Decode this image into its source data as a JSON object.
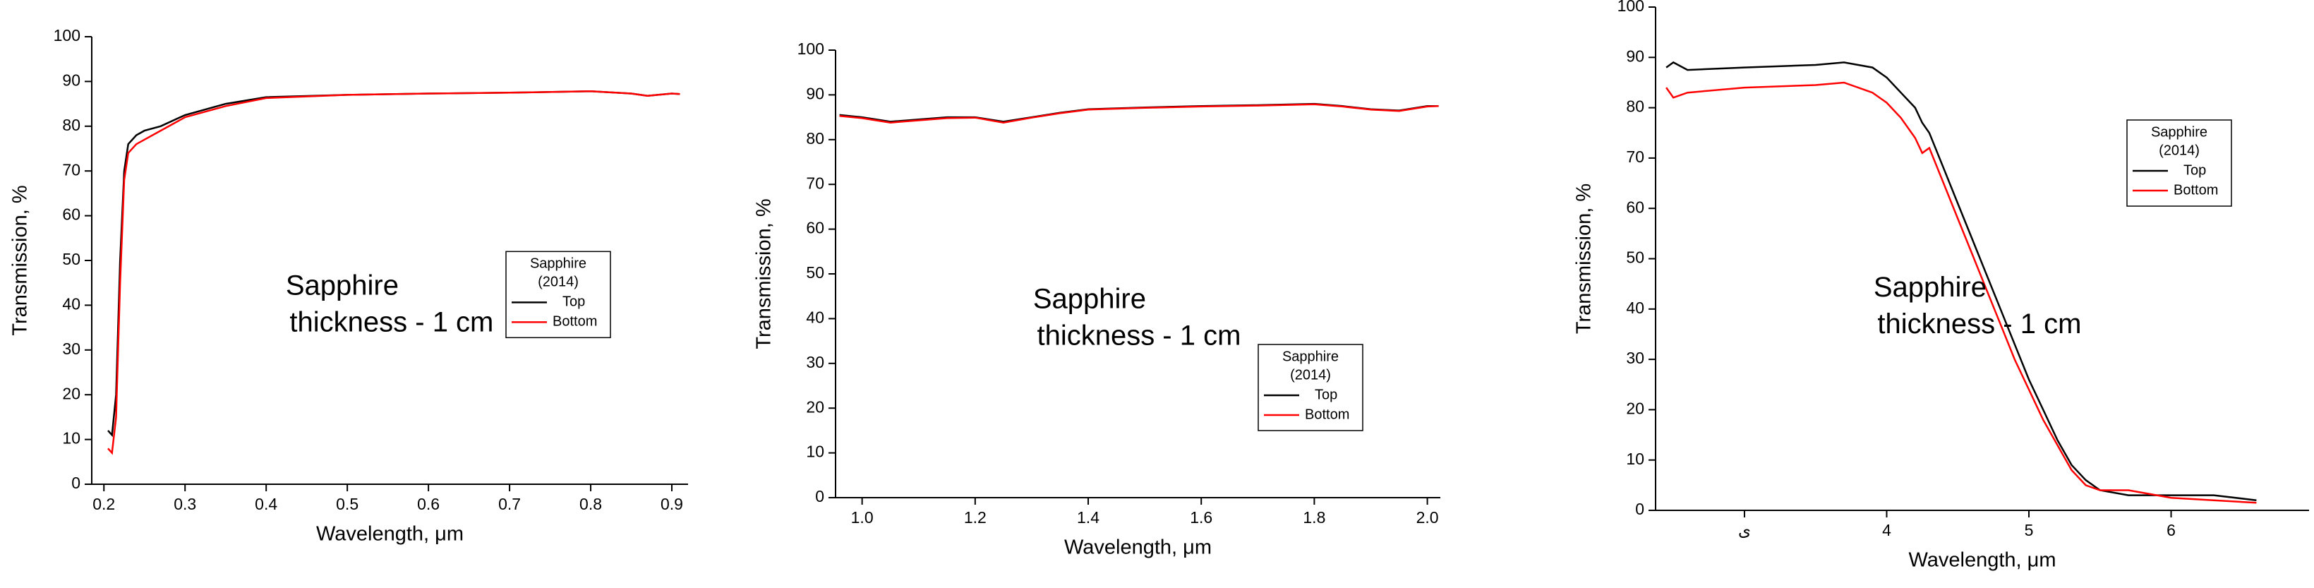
{
  "chart_data": [
    {
      "type": "line",
      "x_label": "Wavelength, μm",
      "y_label": "Transmission, %",
      "annotation": [
        "Sapphire",
        "thickness - 1 cm"
      ],
      "legend_title": [
        "Sapphire",
        "(2014)"
      ],
      "legend": "center right",
      "xlim": [
        0.185,
        0.92
      ],
      "ylim": [
        0,
        100
      ],
      "xticks": [
        0.2,
        0.3,
        0.4,
        0.5,
        0.6,
        0.7,
        0.8,
        0.9
      ],
      "yticks": [
        0,
        10,
        20,
        30,
        40,
        50,
        60,
        70,
        80,
        90,
        100
      ],
      "series": [
        {
          "name": "Top",
          "color": "#000000",
          "x": [
            0.205,
            0.21,
            0.215,
            0.22,
            0.225,
            0.23,
            0.24,
            0.25,
            0.27,
            0.3,
            0.35,
            0.4,
            0.5,
            0.6,
            0.7,
            0.8,
            0.85,
            0.87,
            0.9,
            0.91
          ],
          "values": [
            12,
            11,
            20,
            50,
            70,
            76,
            78,
            79,
            80,
            82.5,
            85,
            86.5,
            87,
            87.3,
            87.5,
            87.8,
            87.3,
            86.8,
            87.3,
            87.2
          ]
        },
        {
          "name": "Bottom",
          "color": "#ff0000",
          "x": [
            0.205,
            0.21,
            0.215,
            0.22,
            0.225,
            0.23,
            0.24,
            0.25,
            0.27,
            0.3,
            0.35,
            0.4,
            0.5,
            0.6,
            0.7,
            0.8,
            0.85,
            0.87,
            0.9,
            0.91
          ],
          "values": [
            8,
            7,
            15,
            45,
            68,
            74,
            76,
            77,
            79,
            82,
            84.5,
            86.3,
            87,
            87.3,
            87.5,
            87.8,
            87.3,
            86.8,
            87.3,
            87.2
          ]
        }
      ]
    },
    {
      "type": "line",
      "x_label": "Wavelength, μm",
      "y_label": "Transmission, %",
      "annotation": [
        "Sapphire",
        "thickness - 1 cm"
      ],
      "legend_title": [
        "Sapphire",
        "(2014)"
      ],
      "legend": "lower right",
      "xlim": [
        0.953,
        2.023
      ],
      "ylim": [
        0,
        100
      ],
      "xticks": [
        {
          "value": 1,
          "label": "1.0"
        },
        1.2,
        1.4,
        1.6,
        1.8,
        {
          "value": 2,
          "label": "2.0"
        }
      ],
      "yticks": [
        0,
        10,
        20,
        30,
        40,
        50,
        60,
        70,
        80,
        90,
        100
      ],
      "series": [
        {
          "name": "Top",
          "color": "#000000",
          "x": [
            0.96,
            1.0,
            1.05,
            1.1,
            1.15,
            1.2,
            1.25,
            1.3,
            1.35,
            1.4,
            1.5,
            1.6,
            1.7,
            1.8,
            1.85,
            1.9,
            1.95,
            2.0,
            2.02
          ],
          "values": [
            85.5,
            85,
            84,
            84.5,
            85,
            85,
            84,
            85,
            86,
            86.8,
            87.2,
            87.5,
            87.7,
            88,
            87.5,
            86.8,
            86.5,
            87.5,
            87.5
          ]
        },
        {
          "name": "Bottom",
          "color": "#ff0000",
          "x": [
            0.96,
            1.0,
            1.05,
            1.1,
            1.15,
            1.2,
            1.25,
            1.3,
            1.35,
            1.4,
            1.5,
            1.6,
            1.7,
            1.8,
            1.85,
            1.9,
            1.95,
            2.0,
            2.02
          ],
          "values": [
            85.3,
            84.8,
            83.8,
            84.3,
            84.8,
            84.9,
            83.8,
            84.9,
            85.9,
            86.7,
            87.1,
            87.4,
            87.6,
            87.9,
            87.4,
            86.7,
            86.4,
            87.4,
            87.5
          ]
        }
      ]
    },
    {
      "type": "line",
      "x_label": "Wavelength, μm",
      "y_label": "Transmission, %",
      "annotation": [
        "Sapphire",
        "thickness - 1 cm"
      ],
      "legend_title": [
        "Sapphire",
        "(2014)"
      ],
      "legend": "upper right",
      "xlim": [
        2.375,
        6.97
      ],
      "ylim": [
        0,
        100
      ],
      "xticks": [
        {
          "value": 3,
          "label": "ى"
        },
        4,
        5,
        6
      ],
      "yticks": [
        0,
        10,
        20,
        30,
        40,
        50,
        60,
        70,
        80,
        90,
        100
      ],
      "series": [
        {
          "name": "Top",
          "color": "#000000",
          "x": [
            2.45,
            2.5,
            2.6,
            3,
            3.5,
            3.7,
            3.9,
            4.0,
            4.1,
            4.2,
            4.25,
            4.3,
            4.4,
            4.5,
            4.6,
            4.7,
            4.8,
            4.9,
            5.0,
            5.1,
            5.2,
            5.3,
            5.4,
            5.5,
            5.7,
            6.0,
            6.3,
            6.6
          ],
          "values": [
            88,
            89,
            87.5,
            88,
            88.5,
            89,
            88,
            86,
            83,
            80,
            77,
            75,
            68,
            61,
            54,
            47,
            40,
            33,
            26,
            20,
            14,
            9,
            6,
            4,
            3,
            3,
            3,
            2
          ]
        },
        {
          "name": "Bottom",
          "color": "#ff0000",
          "x": [
            2.45,
            2.5,
            2.6,
            3,
            3.5,
            3.7,
            3.9,
            4.0,
            4.1,
            4.2,
            4.25,
            4.3,
            4.4,
            4.5,
            4.6,
            4.7,
            4.8,
            4.9,
            5.0,
            5.1,
            5.2,
            5.3,
            5.4,
            5.5,
            5.7,
            6.0,
            6.3,
            6.6
          ],
          "values": [
            84,
            82,
            83,
            84,
            84.5,
            85,
            83,
            81,
            78,
            74,
            71,
            72,
            65,
            58,
            51,
            44,
            37,
            30,
            24,
            18,
            13,
            8,
            5,
            4,
            4,
            2.5,
            2,
            1.5
          ]
        }
      ]
    }
  ]
}
